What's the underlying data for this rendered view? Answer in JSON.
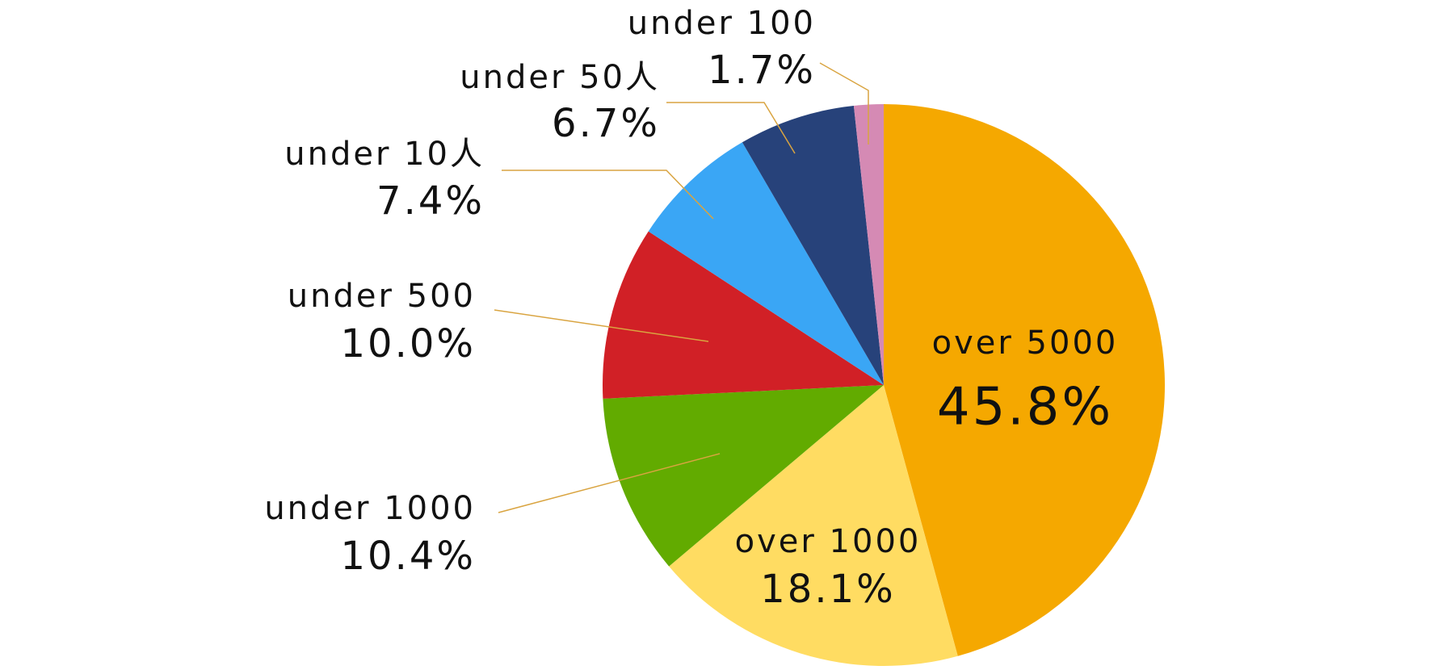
{
  "chart_data": {
    "type": "pie",
    "categories": [
      "over 5000",
      "over 1000",
      "under 1000",
      "under 500",
      "under 10人",
      "under 50人",
      "under 100"
    ],
    "values": [
      45.8,
      18.1,
      10.4,
      10.0,
      7.4,
      6.7,
      1.7
    ],
    "value_labels": [
      "45.8%",
      "18.1%",
      "10.4%",
      "10.0%",
      "7.4%",
      "6.7%",
      "1.7%"
    ],
    "colors": [
      "#f5a800",
      "#ffdc62",
      "#62ab00",
      "#d12026",
      "#3aa6f5",
      "#27427a",
      "#d58ab4"
    ]
  }
}
